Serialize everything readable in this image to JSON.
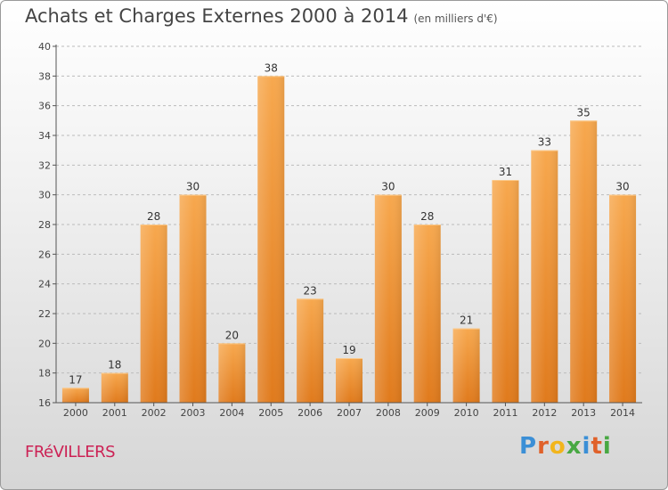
{
  "header": {
    "title": "Achats et Charges Externes 2000 à 2014",
    "unit": "(en milliers d'€)"
  },
  "commune": "FRéVILLERS",
  "logo": {
    "text": "Proxiti",
    "letter_colors": [
      "#3b8fd6",
      "#e0612a",
      "#f2b51c",
      "#48a843",
      "#3b8fd6",
      "#e0612a",
      "#48a843"
    ]
  },
  "colors": {
    "bar_top": "#f7a84e",
    "bar_bottom": "#e07a1c",
    "axis": "#555555",
    "grid": "#bbbbbb"
  },
  "chart_data": {
    "type": "bar",
    "title": "Achats et Charges Externes 2000 à 2014",
    "subtitle": "(en milliers d'€)",
    "xlabel": "",
    "ylabel": "",
    "categories": [
      "2000",
      "2001",
      "2002",
      "2003",
      "2004",
      "2005",
      "2006",
      "2007",
      "2008",
      "2009",
      "2010",
      "2011",
      "2012",
      "2013",
      "2014"
    ],
    "values": [
      17,
      18,
      28,
      30,
      20,
      38,
      23,
      19,
      30,
      28,
      21,
      31,
      33,
      35,
      30
    ],
    "ylim": [
      16,
      40
    ],
    "yticks": [
      16,
      18,
      20,
      22,
      24,
      26,
      28,
      30,
      32,
      34,
      36,
      38,
      40
    ],
    "grid": true,
    "data_labels": true
  }
}
